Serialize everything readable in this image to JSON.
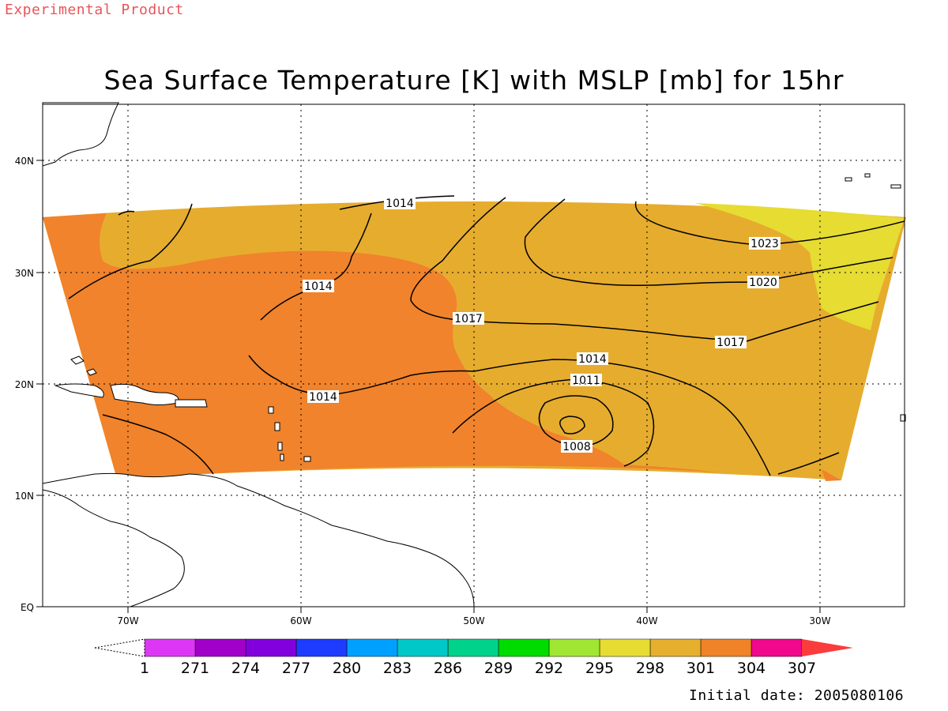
{
  "header": {
    "experimental_label": "Experimental Product",
    "title": "Sea Surface Temperature [K] with MSLP [mb] for 15hr"
  },
  "map": {
    "lat_labels": [
      "40N",
      "30N",
      "20N",
      "10N",
      "EQ"
    ],
    "lon_labels": [
      "70W",
      "60W",
      "50W",
      "40W",
      "30W"
    ],
    "contour_labels": [
      "1014",
      "1014",
      "1014",
      "1017",
      "1014",
      "1011",
      "1008",
      "1017",
      "1020",
      "1023"
    ],
    "colors": {
      "sst_301": "#e6ac2e",
      "sst_304": "#f0832b",
      "sst_298": "#e6dc32",
      "contour": "#000000",
      "grid": "#000000"
    }
  },
  "colorbar": {
    "tick_labels": [
      "1",
      "271",
      "274",
      "277",
      "280",
      "283",
      "286",
      "289",
      "292",
      "295",
      "298",
      "301",
      "304",
      "307"
    ],
    "colors": [
      "#dd37f5",
      "#a000c8",
      "#8200dc",
      "#1e3cff",
      "#00a0ff",
      "#00c8c8",
      "#00d28c",
      "#00dc00",
      "#a0e632",
      "#e6dc32",
      "#e6af2d",
      "#f08228",
      "#f0098c",
      "#fa3c3c"
    ]
  },
  "footer": {
    "initial_date": "Initial date: 2005080106"
  }
}
